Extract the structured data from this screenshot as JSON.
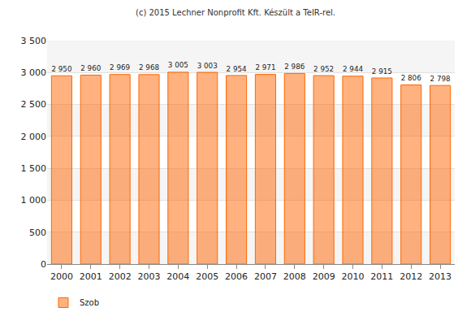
{
  "chart_data": {
    "type": "bar",
    "title": "(c) 2015 Lechner Nonprofit Kft. Készült a TeIR-rel.",
    "categories": [
      "2000",
      "2001",
      "2002",
      "2003",
      "2004",
      "2005",
      "2006",
      "2007",
      "2008",
      "2009",
      "2010",
      "2011",
      "2012",
      "2013"
    ],
    "series": [
      {
        "name": "Szob",
        "color": "#ff6600",
        "values": [
          2950,
          2960,
          2969,
          2968,
          3005,
          3003,
          2954,
          2971,
          2986,
          2952,
          2944,
          2915,
          2806,
          2798
        ],
        "value_labels": [
          "2 950",
          "2 960",
          "2 969",
          "2 968",
          "3 005",
          "3 003",
          "2 954",
          "2 971",
          "2 986",
          "2 952",
          "2 944",
          "2 915",
          "2 806",
          "2 798"
        ]
      }
    ],
    "ylim": [
      0,
      3500
    ],
    "yticks": [
      0,
      500,
      {
        "value": 1000,
        "label": "1 000"
      },
      {
        "value": 1500,
        "label": "1 500"
      },
      {
        "value": 2000,
        "label": "2 000"
      },
      {
        "value": 2500,
        "label": "2 500"
      },
      {
        "value": 3000,
        "label": "3 000"
      },
      {
        "value": 3500,
        "label": "3 500"
      }
    ],
    "grid": true,
    "data_labels": true,
    "legend": "bottom left"
  }
}
